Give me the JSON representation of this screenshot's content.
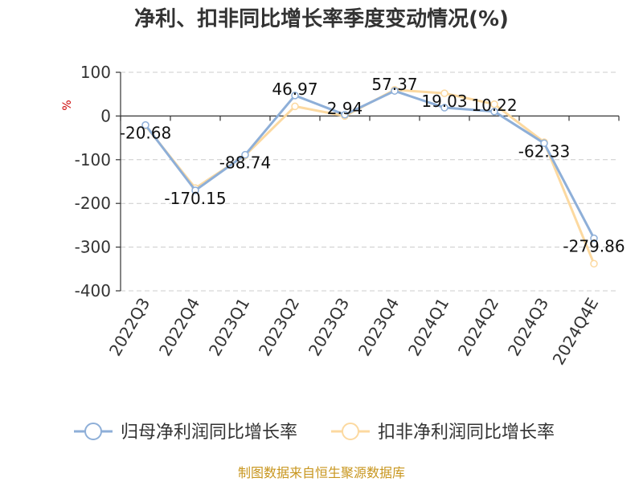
{
  "chart_data": {
    "type": "line",
    "title": "净利、扣非同比增长率季度变动情况(%)",
    "ylabel": "%",
    "categories": [
      "2022Q3",
      "2022Q4",
      "2023Q1",
      "2023Q2",
      "2023Q3",
      "2023Q4",
      "2024Q1",
      "2024Q2",
      "2024Q3",
      "2024Q4E"
    ],
    "ylim": [
      -400,
      100
    ],
    "yticks": [
      100,
      0,
      -100,
      -200,
      -300,
      -400
    ],
    "grid": true,
    "legend_position": "bottom",
    "series": [
      {
        "name": "归母净利润同比增长率",
        "color": "#8eafd8",
        "values": [
          -20.68,
          -170.15,
          -88.74,
          46.97,
          2.94,
          57.37,
          19.03,
          10.22,
          -62.33,
          -279.86
        ],
        "labels": [
          "-20.68",
          "-170.15",
          "-88.74",
          "46.97",
          "2.94",
          "57.37",
          "19.03",
          "10.22",
          "-62.33",
          "-279.86"
        ]
      },
      {
        "name": "扣非净利润同比增长率",
        "color": "#fcd9a0",
        "values": [
          -22,
          -165,
          -90,
          22,
          0,
          60,
          52,
          27,
          -60,
          -338
        ]
      }
    ]
  },
  "source": "制图数据来自恒生聚源数据库"
}
